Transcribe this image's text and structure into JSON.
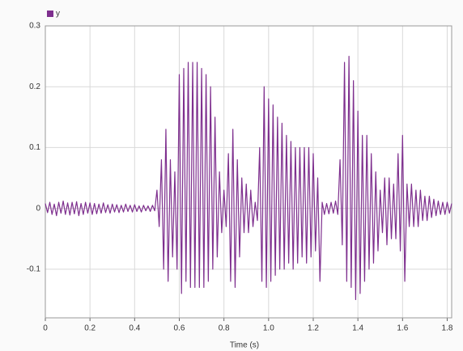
{
  "chart_data": {
    "type": "line",
    "x_label": "Time (s)",
    "xlim": [
      0,
      1.82
    ],
    "ylim": [
      -0.18,
      0.3
    ],
    "xticks": [
      0,
      0.2,
      0.4,
      0.6,
      0.8,
      {
        "value": 1,
        "label": "1.0"
      },
      1.2,
      1.4,
      1.6,
      1.8
    ],
    "yticks": [
      -0.1,
      0,
      0.1,
      0.2,
      0.3
    ],
    "grid": true,
    "legend": "top-left",
    "x": [
      0,
      0.01,
      0.02,
      0.03,
      0.04,
      0.05,
      0.06,
      0.07,
      0.08,
      0.09,
      0.1,
      0.11,
      0.12,
      0.13,
      0.14,
      0.15,
      0.16,
      0.17,
      0.18,
      0.19,
      0.2,
      0.21,
      0.22,
      0.23,
      0.24,
      0.25,
      0.26,
      0.27,
      0.28,
      0.29,
      0.3,
      0.31,
      0.32,
      0.33,
      0.34,
      0.35,
      0.36,
      0.37,
      0.38,
      0.39,
      0.4,
      0.41,
      0.42,
      0.43,
      0.44,
      0.45,
      0.46,
      0.47,
      0.48,
      0.49,
      0.5,
      0.51,
      0.52,
      0.53,
      0.54,
      0.55,
      0.56,
      0.57,
      0.58,
      0.59,
      0.6,
      0.61,
      0.62,
      0.63,
      0.64,
      0.65,
      0.66,
      0.67,
      0.68,
      0.69,
      0.7,
      0.71,
      0.72,
      0.73,
      0.74,
      0.75,
      0.76,
      0.77,
      0.78,
      0.79,
      0.8,
      0.81,
      0.82,
      0.83,
      0.84,
      0.85,
      0.86,
      0.87,
      0.88,
      0.89,
      0.9,
      0.91,
      0.92,
      0.93,
      0.94,
      0.95,
      0.96,
      0.97,
      0.98,
      0.99,
      1,
      1.01,
      1.02,
      1.03,
      1.04,
      1.05,
      1.06,
      1.07,
      1.08,
      1.09,
      1.1,
      1.11,
      1.12,
      1.13,
      1.14,
      1.15,
      1.16,
      1.17,
      1.18,
      1.19,
      1.2,
      1.21,
      1.22,
      1.23,
      1.24,
      1.25,
      1.26,
      1.27,
      1.28,
      1.29,
      1.3,
      1.31,
      1.32,
      1.33,
      1.34,
      1.35,
      1.36,
      1.37,
      1.38,
      1.39,
      1.4,
      1.41,
      1.42,
      1.43,
      1.44,
      1.45,
      1.46,
      1.47,
      1.48,
      1.49,
      1.5,
      1.51,
      1.52,
      1.53,
      1.54,
      1.55,
      1.56,
      1.57,
      1.58,
      1.59,
      1.6,
      1.61,
      1.62,
      1.63,
      1.64,
      1.65,
      1.66,
      1.67,
      1.68,
      1.69,
      1.7,
      1.71,
      1.72,
      1.73,
      1.74,
      1.75,
      1.76,
      1.77,
      1.78,
      1.79,
      1.8,
      1.81,
      1.82
    ],
    "series": [
      {
        "name": "y",
        "color": "#7e2f8e",
        "values": [
          0.008,
          -0.007,
          0.01,
          -0.01,
          0.007,
          -0.012,
          0.01,
          -0.008,
          0.012,
          -0.01,
          0.009,
          -0.011,
          0.01,
          -0.009,
          0.011,
          -0.012,
          0.008,
          -0.01,
          0.01,
          -0.008,
          0.009,
          -0.01,
          0.008,
          -0.009,
          0.007,
          -0.008,
          0.009,
          -0.007,
          0.006,
          -0.008,
          0.007,
          -0.006,
          0.006,
          -0.007,
          0.005,
          -0.006,
          0.007,
          -0.005,
          0.005,
          -0.006,
          0.006,
          -0.005,
          0.004,
          -0.006,
          0.005,
          -0.004,
          0.004,
          -0.005,
          0.005,
          -0.004,
          0.03,
          -0.03,
          0.08,
          -0.1,
          0.13,
          -0.12,
          0.08,
          -0.08,
          0.06,
          -0.1,
          0.22,
          -0.14,
          0.23,
          -0.12,
          0.24,
          -0.13,
          0.24,
          -0.13,
          0.24,
          -0.13,
          0.23,
          -0.13,
          0.22,
          -0.12,
          0.2,
          -0.1,
          0.15,
          -0.08,
          0.06,
          -0.04,
          0.03,
          -0.03,
          0.09,
          -0.12,
          0.13,
          -0.13,
          0.08,
          -0.08,
          0.05,
          -0.04,
          0.04,
          -0.04,
          0.03,
          -0.03,
          0.01,
          -0.02,
          0.1,
          -0.12,
          0.2,
          -0.13,
          0.18,
          -0.12,
          0.17,
          -0.11,
          0.15,
          -0.1,
          0.14,
          -0.1,
          0.12,
          -0.09,
          0.11,
          -0.1,
          0.1,
          -0.09,
          0.1,
          -0.08,
          0.1,
          -0.09,
          0.1,
          -0.08,
          0.09,
          -0.07,
          0.05,
          -0.12,
          0.01,
          -0.01,
          0.008,
          -0.009,
          0.01,
          -0.008,
          0.012,
          -0.01,
          0.08,
          -0.06,
          0.24,
          -0.12,
          0.25,
          -0.13,
          0.21,
          -0.15,
          0.16,
          -0.14,
          0.12,
          -0.12,
          0.12,
          -0.1,
          0.09,
          -0.09,
          0.06,
          -0.07,
          0.03,
          -0.04,
          0.05,
          -0.06,
          0.05,
          -0.05,
          0.04,
          -0.05,
          0.09,
          -0.07,
          0.12,
          -0.12,
          0.04,
          -0.03,
          0.04,
          -0.03,
          0.03,
          -0.03,
          0.03,
          -0.02,
          0.02,
          -0.02,
          0.02,
          -0.015,
          0.015,
          -0.012,
          0.012,
          -0.01,
          0.01,
          -0.01,
          0.01,
          -0.008,
          0.008
        ]
      }
    ]
  }
}
